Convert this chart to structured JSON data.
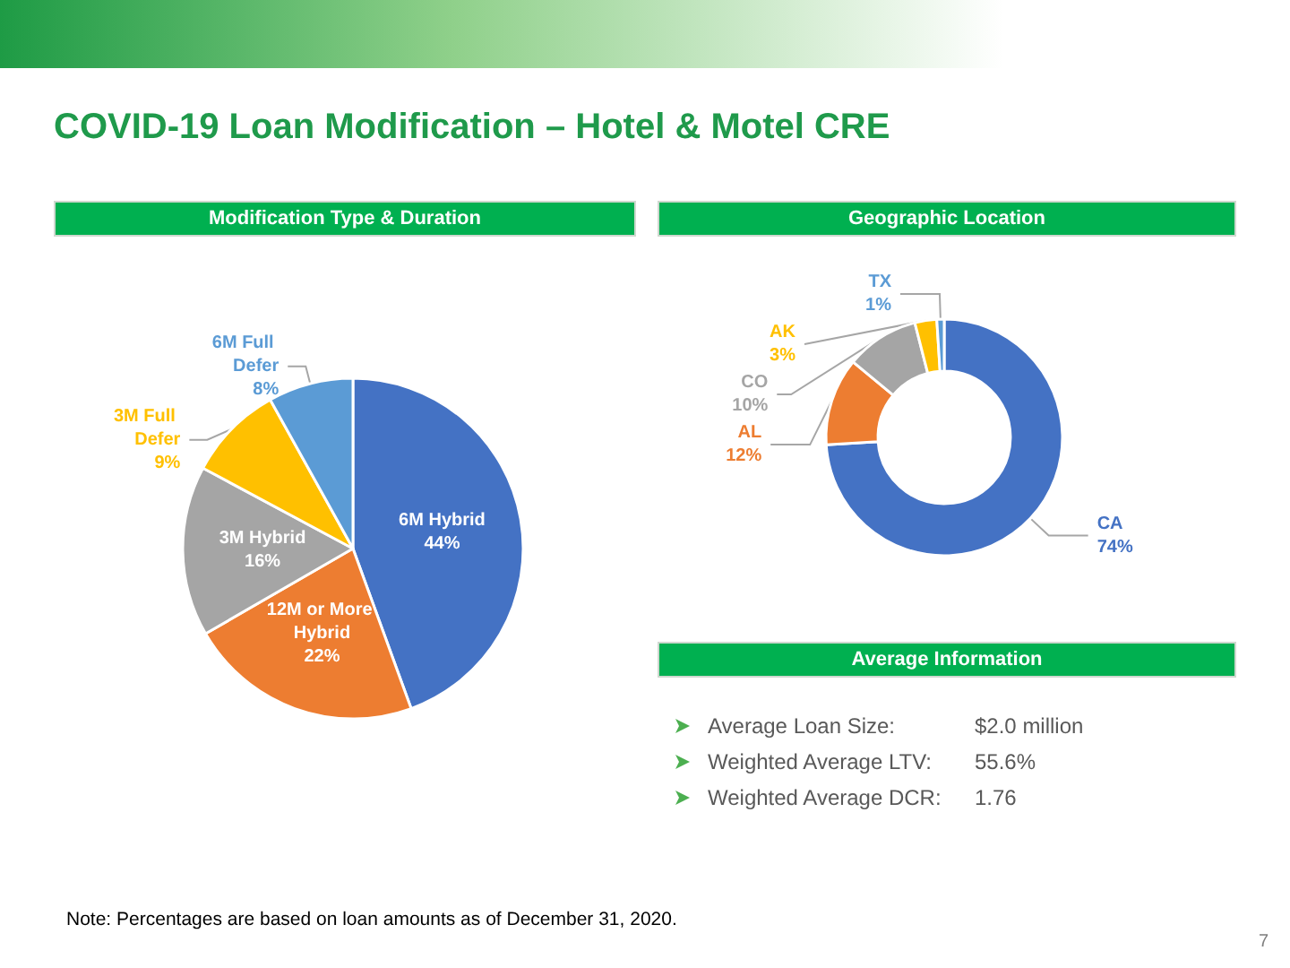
{
  "chart_data": [
    {
      "type": "other",
      "title": "COVID-19 Loan Modification – Hotel & Motel CRE",
      "annotations": [
        "Note: Percentages are based on loan amounts as of December 31, 2020.",
        "7"
      ]
    },
    {
      "type": "pie",
      "title": "Modification Type & Duration",
      "categories": [
        "6M Hybrid",
        "12M or More Hybrid",
        "3M Hybrid",
        "3M Full Defer",
        "6M Full Defer"
      ],
      "values": [
        44,
        22,
        16,
        9,
        8
      ],
      "value_labels": [
        "44%",
        "22%",
        "16%",
        "9%",
        "8%"
      ],
      "colors": [
        "#4472c4",
        "#ed7d31",
        "#a5a5a5",
        "#ffc000",
        "#5b9bd5"
      ],
      "legend": false
    },
    {
      "type": "donut",
      "title": "Geographic Location",
      "categories": [
        "CA",
        "AL",
        "CO",
        "AK",
        "TX"
      ],
      "values": [
        74,
        12,
        10,
        3,
        1
      ],
      "value_labels": [
        "74%",
        "12%",
        "10%",
        "3%",
        "1%"
      ],
      "colors": [
        "#4472c4",
        "#ed7d31",
        "#a5a5a5",
        "#ffc000",
        "#5b9bd5"
      ],
      "legend": false
    },
    {
      "type": "other",
      "title": "Average Information",
      "annotations": [
        "Average Loan Size:",
        "$2.0 million",
        "Weighted Average LTV:",
        "55.6%",
        "Weighted Average DCR:",
        "1.76"
      ]
    }
  ]
}
